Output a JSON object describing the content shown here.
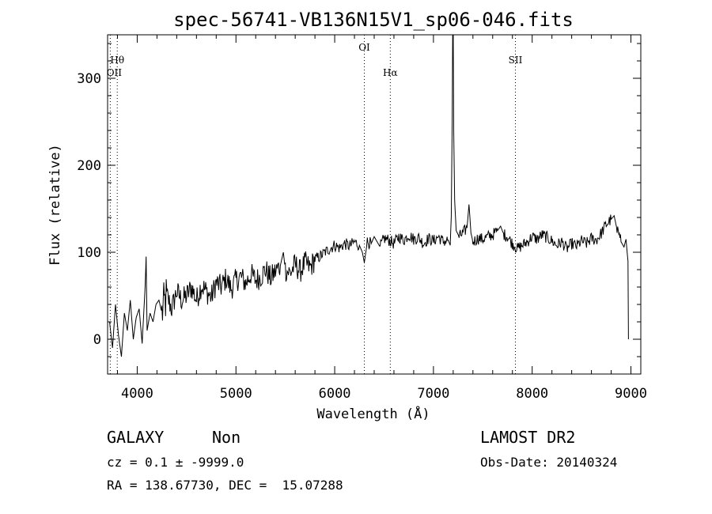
{
  "chart_data": {
    "type": "line",
    "title": "spec-56741-VB136N15V1_sp06-046.fits",
    "xlabel": "Wavelength (Å)",
    "ylabel": "Flux (relative)",
    "xlim": [
      3700,
      9100
    ],
    "ylim": [
      -40,
      350
    ],
    "xticks": [
      4000,
      5000,
      6000,
      7000,
      8000,
      9000
    ],
    "yticks": [
      0,
      100,
      200,
      300
    ],
    "grid": false,
    "series": [
      {
        "values": [
          [
            3720,
            20
          ],
          [
            3750,
            -10
          ],
          [
            3780,
            40
          ],
          [
            3810,
            5
          ],
          [
            3840,
            -20
          ],
          [
            3870,
            30
          ],
          [
            3900,
            10
          ],
          [
            3930,
            45
          ],
          [
            3960,
            0
          ],
          [
            3990,
            25
          ],
          [
            4020,
            35
          ],
          [
            4050,
            -5
          ],
          [
            4080,
            60
          ],
          [
            4090,
            95
          ],
          [
            4100,
            10
          ],
          [
            4130,
            30
          ],
          [
            4160,
            20
          ],
          [
            4190,
            40
          ],
          [
            4220,
            45
          ],
          [
            4250,
            30
          ],
          [
            4300,
            50
          ],
          [
            4350,
            35
          ],
          [
            4400,
            55
          ],
          [
            4450,
            45
          ],
          [
            4500,
            50
          ],
          [
            4550,
            60
          ],
          [
            4600,
            45
          ],
          [
            4650,
            62
          ],
          [
            4700,
            55
          ],
          [
            4750,
            48
          ],
          [
            4800,
            65
          ],
          [
            4850,
            60
          ],
          [
            4900,
            70
          ],
          [
            4950,
            58
          ],
          [
            5000,
            68
          ],
          [
            5050,
            72
          ],
          [
            5100,
            64
          ],
          [
            5150,
            75
          ],
          [
            5200,
            68
          ],
          [
            5250,
            72
          ],
          [
            5300,
            80
          ],
          [
            5350,
            70
          ],
          [
            5400,
            78
          ],
          [
            5450,
            85
          ],
          [
            5480,
            100
          ],
          [
            5500,
            80
          ],
          [
            5550,
            76
          ],
          [
            5600,
            86
          ],
          [
            5650,
            78
          ],
          [
            5700,
            88
          ],
          [
            5750,
            82
          ],
          [
            5800,
            92
          ],
          [
            5850,
            95
          ],
          [
            5900,
            100
          ],
          [
            5950,
            104
          ],
          [
            6000,
            108
          ],
          [
            6050,
            105
          ],
          [
            6100,
            110
          ],
          [
            6150,
            107
          ],
          [
            6200,
            112
          ],
          [
            6250,
            108
          ],
          [
            6280,
            100
          ],
          [
            6300,
            88
          ],
          [
            6330,
            112
          ],
          [
            6370,
            110
          ],
          [
            6400,
            118
          ],
          [
            6430,
            112
          ],
          [
            6460,
            106
          ],
          [
            6500,
            116
          ],
          [
            6550,
            114
          ],
          [
            6600,
            110
          ],
          [
            6650,
            118
          ],
          [
            6700,
            114
          ],
          [
            6750,
            120
          ],
          [
            6800,
            115
          ],
          [
            6850,
            117
          ],
          [
            6900,
            110
          ],
          [
            6950,
            116
          ],
          [
            7000,
            113
          ],
          [
            7050,
            118
          ],
          [
            7100,
            112
          ],
          [
            7150,
            114
          ],
          [
            7170,
            108
          ],
          [
            7180,
            140
          ],
          [
            7190,
            250
          ],
          [
            7195,
            350
          ],
          [
            7200,
            350
          ],
          [
            7205,
            240
          ],
          [
            7215,
            160
          ],
          [
            7230,
            125
          ],
          [
            7260,
            118
          ],
          [
            7300,
            122
          ],
          [
            7340,
            128
          ],
          [
            7360,
            155
          ],
          [
            7380,
            122
          ],
          [
            7400,
            112
          ],
          [
            7450,
            116
          ],
          [
            7500,
            115
          ],
          [
            7550,
            118
          ],
          [
            7600,
            120
          ],
          [
            7650,
            125
          ],
          [
            7680,
            130
          ],
          [
            7710,
            121
          ],
          [
            7750,
            118
          ],
          [
            7800,
            110
          ],
          [
            7850,
            104
          ],
          [
            7900,
            108
          ],
          [
            7950,
            112
          ],
          [
            8000,
            118
          ],
          [
            8050,
            115
          ],
          [
            8100,
            120
          ],
          [
            8150,
            117
          ],
          [
            8200,
            113
          ],
          [
            8250,
            108
          ],
          [
            8300,
            112
          ],
          [
            8350,
            104
          ],
          [
            8400,
            110
          ],
          [
            8450,
            107
          ],
          [
            8500,
            113
          ],
          [
            8550,
            110
          ],
          [
            8600,
            116
          ],
          [
            8650,
            114
          ],
          [
            8700,
            122
          ],
          [
            8750,
            132
          ],
          [
            8800,
            138
          ],
          [
            8830,
            142
          ],
          [
            8860,
            126
          ],
          [
            8900,
            112
          ],
          [
            8930,
            106
          ],
          [
            8950,
            115
          ],
          [
            8970,
            90
          ],
          [
            8975,
            0
          ]
        ]
      }
    ],
    "line_markers": [
      {
        "label": "Hθ",
        "x": 3798,
        "row": 2
      },
      {
        "label": "OII",
        "x": 3727,
        "row": 3
      },
      {
        "label": "OI",
        "x": 6300,
        "row": 1
      },
      {
        "label": "Hα",
        "x": 6563,
        "row": 3
      },
      {
        "label": "SII",
        "x": 7830,
        "row": 2
      }
    ]
  },
  "info": {
    "object_class": "GALAXY",
    "object_subclass": "Non",
    "survey": "LAMOST DR2",
    "redshift_line": "cz = 0.1 ± -9999.0",
    "obs_date_line": "Obs-Date: 20140324",
    "coords_line": "RA = 138.67730, DEC =  15.07288"
  }
}
